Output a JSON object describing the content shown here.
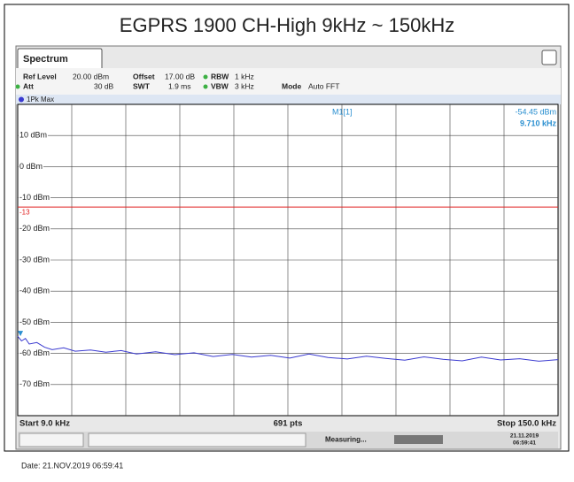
{
  "chart_data": {
    "type": "line",
    "title": "EGPRS 1900 CH-High 9kHz ~ 150kHz",
    "tab": "Spectrum",
    "settings_row1": [
      {
        "label": "Ref Level",
        "value": "20.00 dBm"
      },
      {
        "label": "Offset",
        "value": "17.00 dB"
      },
      {
        "label": "RBW",
        "value": "1 kHz"
      }
    ],
    "settings_row2": [
      {
        "label": "Att",
        "value": "30 dB"
      },
      {
        "label": "SWT",
        "value": "1.9 ms"
      },
      {
        "label": "VBW",
        "value": "3 kHz"
      },
      {
        "label": "Mode",
        "value": "Auto FFT"
      }
    ],
    "trace_label": "1Pk Max",
    "marker": {
      "name": "M1[1]",
      "x": 9.71,
      "value": -54.45,
      "value_label": "-54.45 dBm",
      "x_label": "9.710 kHz"
    },
    "limit_line": {
      "value": -13,
      "label": "-13",
      "color": "#e02020"
    },
    "x_start_label": "Start 9.0 kHz",
    "points_label": "691 pts",
    "x_stop_label": "Stop 150.0 kHz",
    "status": "Measuring...",
    "status_date": "21.11.2019",
    "status_time": "06:59:41",
    "footer": "Date: 21.NOV.2019 06:59:41",
    "xlim": [
      9,
      150
    ],
    "ylim": [
      -80,
      20
    ],
    "yticks": [
      {
        "value": 10,
        "label": "10 dBm"
      },
      {
        "value": 0,
        "label": "0 dBm"
      },
      {
        "value": -10,
        "label": "-10 dBm"
      },
      {
        "value": -20,
        "label": "-20 dBm"
      },
      {
        "value": -30,
        "label": "-30 dBm"
      },
      {
        "value": -40,
        "label": "-40 dBm"
      },
      {
        "value": -50,
        "label": "-50 dBm"
      },
      {
        "value": -60,
        "label": "-60 dBm"
      },
      {
        "value": -70,
        "label": "-70 dBm"
      }
    ],
    "grid": true,
    "series": [
      {
        "name": "1Pk Max",
        "color": "#3a3ad0",
        "x": [
          9,
          10,
          11,
          12,
          14,
          16,
          18,
          21,
          24,
          28,
          32,
          36,
          40,
          45,
          50,
          55,
          60,
          65,
          70,
          75,
          80,
          85,
          90,
          95,
          100,
          105,
          110,
          115,
          120,
          125,
          130,
          135,
          140,
          145,
          150
        ],
        "values": [
          -54.5,
          -56,
          -55.2,
          -57,
          -56.5,
          -58,
          -58.8,
          -58.2,
          -59.3,
          -58.9,
          -59.6,
          -59.1,
          -60.2,
          -59.5,
          -60.4,
          -59.8,
          -61,
          -60.3,
          -61.2,
          -60.6,
          -61.5,
          -60.2,
          -61.3,
          -61.8,
          -60.9,
          -61.6,
          -62.2,
          -61.1,
          -61.9,
          -62.4,
          -61.2,
          -62.1,
          -61.7,
          -62.5,
          -62
        ]
      }
    ]
  }
}
